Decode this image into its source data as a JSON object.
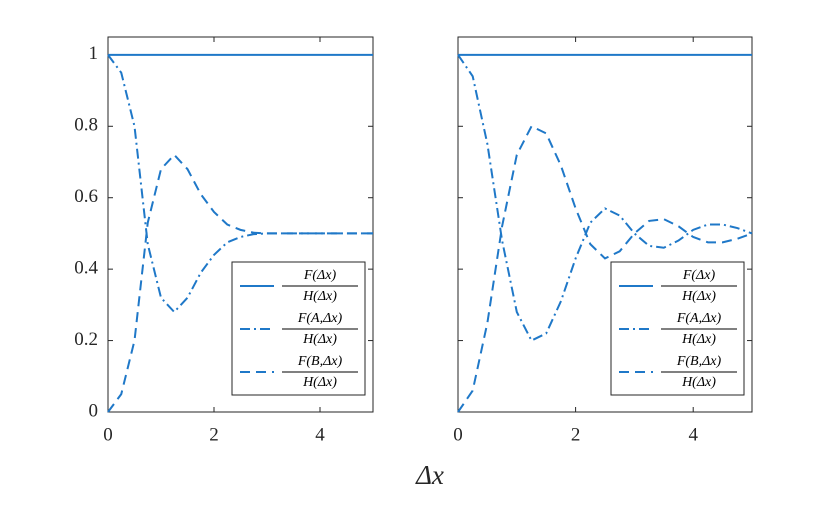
{
  "xlabel": "Δx",
  "chart_data": [
    {
      "type": "line",
      "x": [
        0,
        0.25,
        0.5,
        0.75,
        1,
        1.25,
        1.5,
        1.75,
        2,
        2.25,
        2.5,
        2.75,
        3,
        3.25,
        3.5,
        3.75,
        4,
        4.25,
        4.5,
        4.75,
        5
      ],
      "series": [
        {
          "name": {
            "numerator": "F(Δx)",
            "denominator": "H(Δx)"
          },
          "color": "#1f78c8",
          "dash": "solid",
          "values": [
            1,
            1,
            1,
            1,
            1,
            1,
            1,
            1,
            1,
            1,
            1,
            1,
            1,
            1,
            1,
            1,
            1,
            1,
            1,
            1,
            1
          ]
        },
        {
          "name": {
            "numerator": "F(A,Δx)",
            "denominator": "H(Δx)"
          },
          "color": "#1f78c8",
          "dash": "dashdot",
          "values": [
            1,
            0.95,
            0.8,
            0.47,
            0.32,
            0.28,
            0.32,
            0.39,
            0.44,
            0.475,
            0.49,
            0.498,
            0.5,
            0.5,
            0.5,
            0.5,
            0.5,
            0.5,
            0.5,
            0.5,
            0.5
          ]
        },
        {
          "name": {
            "numerator": "F(B,Δx)",
            "denominator": "H(Δx)"
          },
          "color": "#1f78c8",
          "dash": "dashed",
          "values": [
            0,
            0.05,
            0.2,
            0.53,
            0.68,
            0.72,
            0.68,
            0.61,
            0.56,
            0.525,
            0.51,
            0.502,
            0.5,
            0.5,
            0.5,
            0.5,
            0.5,
            0.5,
            0.5,
            0.5,
            0.5
          ]
        }
      ],
      "xlim": [
        0,
        5
      ],
      "ylim": [
        0,
        1.05
      ],
      "xticks": [
        0,
        2,
        4
      ],
      "yticks": [
        0,
        0.2,
        0.4,
        0.6,
        0.8,
        1
      ],
      "show_yticklabels": true,
      "legend": "lower right"
    },
    {
      "type": "line",
      "x": [
        0,
        0.25,
        0.5,
        0.75,
        1,
        1.25,
        1.5,
        1.75,
        2,
        2.25,
        2.5,
        2.75,
        3,
        3.25,
        3.5,
        3.75,
        4,
        4.25,
        4.5,
        4.75,
        5
      ],
      "series": [
        {
          "name": {
            "numerator": "F(Δx)",
            "denominator": "H(Δx)"
          },
          "color": "#1f78c8",
          "dash": "solid",
          "values": [
            1,
            1,
            1,
            1,
            1,
            1,
            1,
            1,
            1,
            1,
            1,
            1,
            1,
            1,
            1,
            1,
            1,
            1,
            1,
            1,
            1
          ]
        },
        {
          "name": {
            "numerator": "F(A,Δx)",
            "denominator": "H(Δx)"
          },
          "color": "#1f78c8",
          "dash": "dashdot",
          "values": [
            1,
            0.94,
            0.75,
            0.48,
            0.28,
            0.2,
            0.22,
            0.31,
            0.43,
            0.53,
            0.57,
            0.55,
            0.5,
            0.465,
            0.46,
            0.48,
            0.51,
            0.525,
            0.525,
            0.515,
            0.5
          ]
        },
        {
          "name": {
            "numerator": "F(B,Δx)",
            "denominator": "H(Δx)"
          },
          "color": "#1f78c8",
          "dash": "dashed",
          "values": [
            0,
            0.06,
            0.25,
            0.52,
            0.72,
            0.8,
            0.78,
            0.69,
            0.57,
            0.47,
            0.43,
            0.45,
            0.5,
            0.535,
            0.54,
            0.52,
            0.49,
            0.475,
            0.475,
            0.485,
            0.5
          ]
        }
      ],
      "xlim": [
        0,
        5
      ],
      "ylim": [
        0,
        1.05
      ],
      "xticks": [
        0,
        2,
        4
      ],
      "yticks": [
        0,
        0.2,
        0.4,
        0.6,
        0.8,
        1
      ],
      "show_yticklabels": false,
      "legend": "lower right"
    }
  ]
}
